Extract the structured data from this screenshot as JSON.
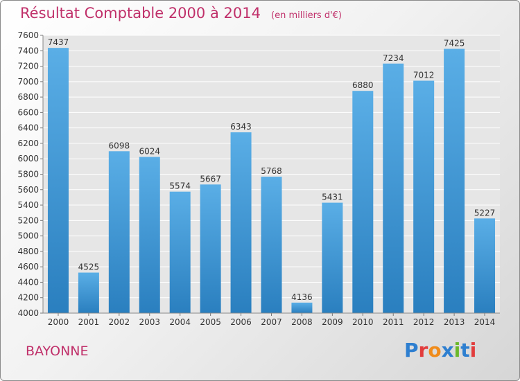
{
  "title": "Résultat Comptable 2000 à 2014",
  "subtitle": "(en milliers d'€)",
  "city": "BAYONNE",
  "logo": {
    "text": "Proxiti",
    "colors": [
      "#2e7fd0",
      "#e23c3c",
      "#f08c1c",
      "#2e7fd0",
      "#6ab82a",
      "#2e7fd0",
      "#e23c3c"
    ]
  },
  "colors": {
    "title": "#c0306a",
    "bar_top": "#5aaee6",
    "bar_bottom": "#2a7fbf",
    "grid": "#ffffff",
    "panel": "#e6e6e6"
  },
  "chart_data": {
    "type": "bar",
    "title": "Résultat Comptable 2000 à 2014",
    "categories": [
      "2000",
      "2001",
      "2002",
      "2003",
      "2004",
      "2005",
      "2006",
      "2007",
      "2008",
      "2009",
      "2010",
      "2011",
      "2012",
      "2013",
      "2014"
    ],
    "values": [
      7437,
      4525,
      6098,
      6024,
      5574,
      5667,
      6343,
      5768,
      4136,
      5431,
      6880,
      7234,
      7012,
      7425,
      5227
    ],
    "ylim": [
      4000,
      7600
    ],
    "yticks": [
      4000,
      4200,
      4400,
      4600,
      4800,
      5000,
      5200,
      5400,
      5600,
      5800,
      6000,
      6200,
      6400,
      6600,
      6800,
      7000,
      7200,
      7400,
      7600
    ],
    "grid": true,
    "xlabel": "",
    "ylabel": ""
  }
}
